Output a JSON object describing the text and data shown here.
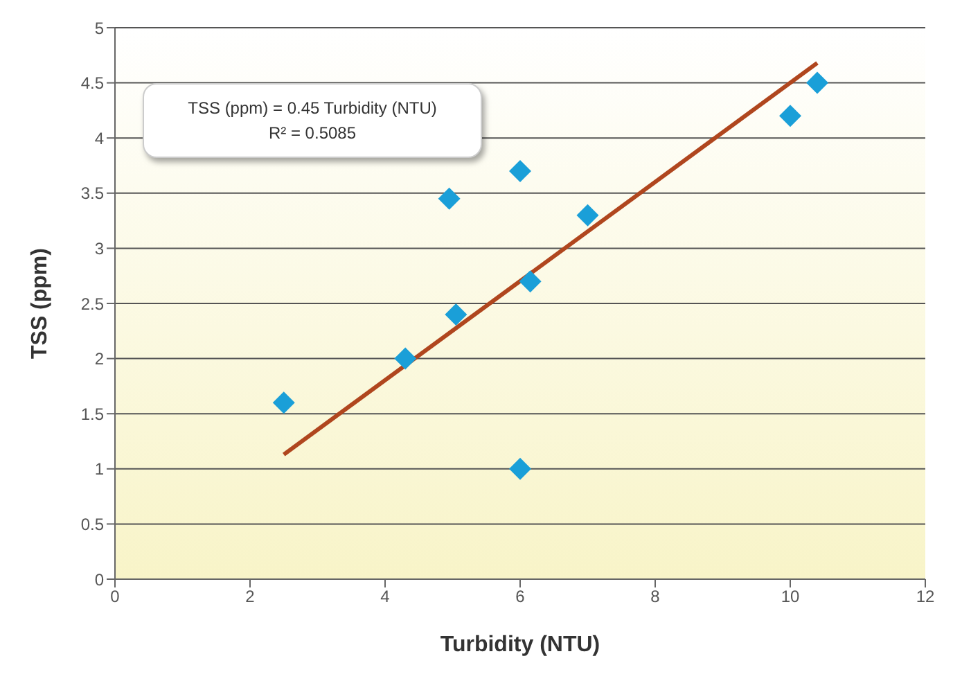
{
  "chart_data": {
    "type": "scatter",
    "xlabel": "Turbidity (NTU)",
    "ylabel": "TSS (ppm)",
    "annotations": [
      "TSS (ppm) = 0.45 Turbidity (NTU)",
      "R² = 0.5085"
    ],
    "x": [
      2.5,
      4.3,
      4.95,
      5.05,
      6.0,
      6.0,
      6.15,
      7.0,
      10.0,
      10.4
    ],
    "series": [
      {
        "color": "#1a9fd8",
        "values": [
          1.6,
          2.0,
          3.45,
          2.4,
          3.7,
          1.0,
          2.7,
          3.3,
          4.2,
          4.5
        ],
        "marker": "diamond"
      },
      {
        "type": "line",
        "color": "#b0461e",
        "x": [
          2.5,
          10.4
        ],
        "values": [
          1.13,
          4.68
        ]
      }
    ],
    "xlim": [
      0,
      12
    ],
    "xticks": [
      0,
      2,
      4,
      6,
      8,
      10,
      12
    ],
    "ylim": [
      0,
      5
    ],
    "yticks": [
      0,
      0.5,
      1,
      1.5,
      2,
      2.5,
      3,
      3.5,
      4,
      4.5,
      5
    ],
    "grid": "y",
    "legend": false
  }
}
